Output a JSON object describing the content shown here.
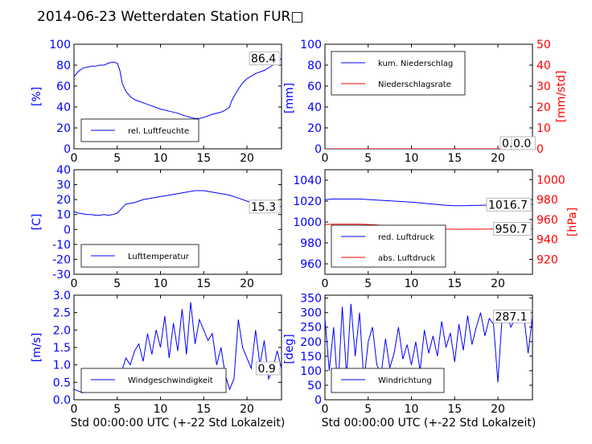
{
  "title": "2014-06-23 Wetterdaten Station FUR",
  "title_glyph": "□",
  "colors": {
    "left_axis": "#0000ff",
    "right_axis": "#ff0000",
    "text": "#000000"
  },
  "chart_data": [
    {
      "type": "line",
      "panel": "humidity",
      "ylabel": "[%]",
      "xlim": [
        0,
        24
      ],
      "ylim": [
        0,
        100
      ],
      "xticks": [
        0,
        5,
        10,
        15,
        20
      ],
      "yticks": [
        0,
        20,
        40,
        60,
        80,
        100
      ],
      "value_box": "86.4",
      "legend_position": "lower-left",
      "series": [
        {
          "name": "rel. Luftfeuchte",
          "color": "#0000ff",
          "x": [
            0,
            0.5,
            1,
            1.5,
            2,
            2.5,
            3,
            3.5,
            4,
            4.5,
            5,
            5.3,
            5.6,
            6,
            6.5,
            7,
            8,
            9,
            10,
            11,
            12,
            13,
            13.5,
            14,
            14.5,
            15,
            16,
            17,
            17.5,
            18,
            18.2,
            18.5,
            19,
            19.5,
            20,
            21,
            22,
            23,
            24
          ],
          "y": [
            69,
            74,
            77,
            78,
            79,
            79,
            80,
            80,
            82,
            83,
            82,
            75,
            62,
            55,
            50,
            47,
            44,
            41,
            38,
            36,
            34,
            31,
            30,
            29,
            29,
            30,
            33,
            35,
            37,
            40,
            45,
            50,
            57,
            63,
            67,
            72,
            75,
            80,
            86.4
          ]
        }
      ]
    },
    {
      "type": "line",
      "panel": "precipitation",
      "ylabel": "[mm]",
      "ylabel_right": "[mm/std]",
      "xlim": [
        0,
        24
      ],
      "ylim": [
        0,
        100
      ],
      "ylim_right": [
        0,
        50
      ],
      "xticks": [
        0,
        5,
        10,
        15,
        20
      ],
      "yticks": [
        0,
        20,
        40,
        60,
        80,
        100
      ],
      "yticks_right": [
        0,
        10,
        20,
        30,
        40,
        50
      ],
      "value_box": "0.0",
      "value_box_right": "0.0",
      "legend_position": "upper-left",
      "series": [
        {
          "name": "kum. Niederschlag",
          "color": "#0000ff",
          "axis": "left",
          "x": [
            0,
            24
          ],
          "y": [
            0,
            0
          ]
        },
        {
          "name": "Niederschlagsrate",
          "color": "#ff0000",
          "axis": "right",
          "x": [
            0,
            24
          ],
          "y": [
            0,
            0
          ]
        }
      ]
    },
    {
      "type": "line",
      "panel": "temperature",
      "ylabel": "[C]",
      "xlim": [
        0,
        24
      ],
      "ylim": [
        -30,
        40
      ],
      "xticks": [
        0,
        5,
        10,
        15,
        20
      ],
      "yticks": [
        -30,
        -20,
        -10,
        0,
        10,
        20,
        30,
        40
      ],
      "value_box": "15.3",
      "legend_position": "lower-left",
      "series": [
        {
          "name": "Lufttemperatur",
          "color": "#0000ff",
          "x": [
            0,
            0.5,
            1,
            1.5,
            2,
            2.5,
            3,
            3.5,
            4,
            4.5,
            5,
            5.5,
            6,
            7,
            8,
            9,
            10,
            11,
            12,
            13,
            14,
            14.5,
            15,
            16,
            17,
            18,
            19,
            20,
            21,
            22,
            23,
            24
          ],
          "y": [
            12,
            11,
            10.5,
            10,
            10,
            9.5,
            9.5,
            10,
            9.5,
            10,
            11,
            14,
            17,
            18,
            20,
            21,
            22,
            23,
            24,
            25,
            26,
            26,
            26,
            25,
            24,
            23,
            21,
            19,
            17,
            16,
            15.5,
            15.3
          ]
        }
      ]
    },
    {
      "type": "line",
      "panel": "pressure",
      "ylabel_right": "[hPa]",
      "xlim": [
        0,
        24
      ],
      "ylim": [
        950,
        1050
      ],
      "ylim_right": [
        905,
        1010
      ],
      "xticks": [
        0,
        5,
        10,
        15,
        20
      ],
      "yticks": [
        960,
        980,
        1000,
        1020,
        1040
      ],
      "yticks_right": [
        920,
        940,
        960,
        980,
        1000
      ],
      "value_box": "1016.7",
      "value_box_right": "950.7",
      "legend_position": "lower-left",
      "series": [
        {
          "name": "red. Luftdruck",
          "color": "#0000ff",
          "axis": "left",
          "x": [
            0,
            1,
            2,
            3,
            4,
            5,
            6,
            8,
            10,
            12,
            14,
            15,
            16,
            18,
            20,
            22,
            24
          ],
          "y": [
            1021.5,
            1022,
            1022,
            1022,
            1022,
            1021.5,
            1021,
            1020,
            1019,
            1017.5,
            1016,
            1015.5,
            1015.5,
            1016,
            1016.5,
            1016.5,
            1016.7
          ]
        },
        {
          "name": "abs. Luftdruck",
          "color": "#ff0000",
          "axis": "right",
          "x": [
            0,
            1,
            2,
            3,
            4,
            5,
            6,
            8,
            10,
            12,
            14,
            15,
            16,
            18,
            20,
            22,
            24
          ],
          "y": [
            955,
            955.2,
            955.2,
            955.2,
            955.2,
            955,
            954.5,
            953.5,
            952.5,
            951.5,
            950.5,
            950.2,
            950.2,
            950.3,
            950.5,
            950.6,
            950.7
          ]
        }
      ]
    },
    {
      "type": "line",
      "panel": "wind_speed",
      "ylabel": "[m/s]",
      "xlabel": "Std 00:00:00 UTC (+-22 Std Lokalzeit)",
      "xlim": [
        0,
        24
      ],
      "ylim": [
        0,
        3.0
      ],
      "xticks": [
        0,
        5,
        10,
        15,
        20
      ],
      "yticks": [
        0.0,
        0.5,
        1.0,
        1.5,
        2.0,
        2.5,
        3.0
      ],
      "value_box": "0.9",
      "legend_position": "lower-left",
      "series": [
        {
          "name": "Windgeschwindigkeit",
          "color": "#0000ff",
          "x": [
            0,
            1,
            2,
            3,
            4,
            5,
            5.5,
            6,
            6.5,
            7,
            7.5,
            8,
            8.5,
            9,
            9.5,
            10,
            10.5,
            11,
            11.5,
            12,
            12.5,
            13,
            13.5,
            14,
            14.5,
            15,
            15.5,
            16,
            16.5,
            17,
            17.5,
            18,
            18.5,
            19,
            19.5,
            20,
            20.5,
            21,
            21.5,
            22,
            22.5,
            23,
            23.5,
            24
          ],
          "y": [
            0.3,
            0.2,
            0.3,
            0.4,
            0.3,
            0.5,
            0.8,
            1.2,
            1.0,
            1.4,
            1.6,
            1.1,
            1.9,
            1.3,
            2.0,
            1.5,
            2.4,
            1.2,
            2.2,
            1.4,
            2.6,
            1.3,
            2.8,
            1.6,
            2.3,
            2.0,
            1.7,
            1.9,
            1.0,
            1.5,
            0.7,
            0.3,
            0.6,
            2.3,
            1.5,
            1.2,
            0.9,
            2.0,
            1.0,
            1.7,
            0.6,
            0.9,
            1.4,
            0.9
          ]
        }
      ]
    },
    {
      "type": "line",
      "panel": "wind_direction",
      "ylabel": "[deg]",
      "xlabel": "Std 00:00:00 UTC (+-22 Std Lokalzeit)",
      "xlim": [
        0,
        24
      ],
      "ylim": [
        0,
        360
      ],
      "xticks": [
        0,
        5,
        10,
        15,
        20
      ],
      "yticks": [
        0,
        50,
        100,
        150,
        200,
        250,
        300,
        350
      ],
      "value_box": "287.1",
      "legend_position": "lower-left",
      "series": [
        {
          "name": "Windrichtung",
          "color": "#0000ff",
          "x": [
            0,
            0.5,
            1,
            1.5,
            2,
            2.5,
            3,
            3.5,
            4,
            4.5,
            5,
            5.5,
            6,
            6.5,
            7,
            7.5,
            8,
            8.5,
            9,
            9.5,
            10,
            10.5,
            11,
            11.5,
            12,
            12.5,
            13,
            13.5,
            14,
            14.5,
            15,
            15.5,
            16,
            16.5,
            17,
            17.5,
            18,
            18.5,
            19,
            19.5,
            20,
            20.5,
            21,
            21.5,
            22,
            22.5,
            23,
            23.5,
            24
          ],
          "y": [
            280,
            100,
            250,
            30,
            320,
            80,
            330,
            150,
            300,
            60,
            200,
            250,
            120,
            90,
            210,
            110,
            160,
            250,
            140,
            190,
            120,
            200,
            100,
            240,
            160,
            220,
            150,
            270,
            180,
            230,
            130,
            260,
            170,
            290,
            190,
            250,
            300,
            220,
            280,
            260,
            60,
            290,
            300,
            250,
            280,
            300,
            290,
            160,
            287.1
          ]
        }
      ]
    }
  ]
}
